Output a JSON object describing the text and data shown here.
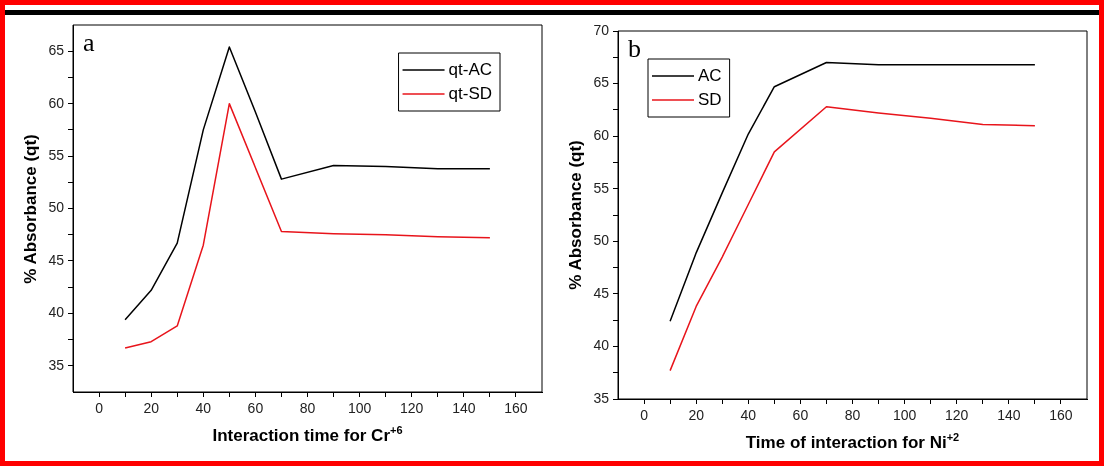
{
  "chart_data": [
    {
      "type": "line",
      "xlabel": "Interaction time for Cr$^{+6}$",
      "ylabel": "% Absorbance (qt)",
      "annotations": [
        "a"
      ],
      "series": [
        {
          "name": "qt-AC",
          "color": "#000000",
          "x": [
            10,
            20,
            30,
            40,
            50,
            60,
            70,
            90,
            110,
            130,
            150
          ],
          "values": [
            39.4,
            42.2,
            46.7,
            57.5,
            65.4,
            59.2,
            52.8,
            54.1,
            54.0,
            53.8,
            53.8
          ]
        },
        {
          "name": "qt-SD",
          "color": "#e8141b",
          "x": [
            10,
            20,
            30,
            40,
            50,
            70,
            90,
            110,
            130,
            150
          ],
          "values": [
            36.7,
            37.3,
            38.8,
            46.5,
            60.0,
            47.8,
            47.6,
            47.5,
            47.3,
            47.2
          ]
        }
      ],
      "xlim": [
        -10,
        170
      ],
      "xticks": [
        0,
        {
          "value": 10,
          "label": null
        },
        20,
        {
          "value": 30,
          "label": null
        },
        40,
        {
          "value": 50,
          "label": null
        },
        60,
        {
          "value": 70,
          "label": null
        },
        80,
        {
          "value": 90,
          "label": null
        },
        100,
        {
          "value": 110,
          "label": null
        },
        120,
        {
          "value": 130,
          "label": null
        },
        140,
        {
          "value": 150,
          "label": null
        },
        160
      ],
      "ylim": [
        32.5,
        67.5
      ],
      "yticks": [
        35,
        {
          "value": 37.5,
          "label": null
        },
        40,
        {
          "value": 42.5,
          "label": null
        },
        45,
        {
          "value": 47.5,
          "label": null
        },
        50,
        {
          "value": 52.5,
          "label": null
        },
        55,
        {
          "value": 57.5,
          "label": null
        },
        60,
        {
          "value": 62.5,
          "label": null
        },
        65
      ],
      "grid": false,
      "legend": "top right",
      "marker": "none",
      "line_style": "solid"
    },
    {
      "type": "line",
      "xlabel": "Time of interaction for Ni$^{+2}$",
      "ylabel": "% Absorbance (qt)",
      "annotations": [
        "b"
      ],
      "series": [
        {
          "name": "AC",
          "color": "#000000",
          "x": [
            10,
            20,
            30,
            40,
            50,
            70,
            90,
            110,
            130,
            150
          ],
          "values": [
            42.4,
            48.9,
            54.6,
            60.2,
            64.7,
            67.0,
            66.8,
            66.8,
            66.8,
            66.8
          ]
        },
        {
          "name": "SD",
          "color": "#e8141b",
          "x": [
            10,
            20,
            30,
            40,
            50,
            70,
            90,
            110,
            130,
            150
          ],
          "values": [
            37.7,
            43.8,
            48.5,
            53.5,
            58.5,
            62.8,
            62.2,
            61.7,
            61.1,
            61.0
          ]
        }
      ],
      "xlim": [
        -10,
        170
      ],
      "xticks": [
        0,
        {
          "value": 10,
          "label": null
        },
        20,
        {
          "value": 30,
          "label": null
        },
        40,
        {
          "value": 50,
          "label": null
        },
        60,
        {
          "value": 70,
          "label": null
        },
        80,
        {
          "value": 90,
          "label": null
        },
        100,
        {
          "value": 110,
          "label": null
        },
        120,
        {
          "value": 130,
          "label": null
        },
        140,
        {
          "value": 150,
          "label": null
        },
        160
      ],
      "ylim": [
        35,
        70
      ],
      "yticks": [
        35,
        {
          "value": 37.5,
          "label": null
        },
        40,
        {
          "value": 42.5,
          "label": null
        },
        45,
        {
          "value": 47.5,
          "label": null
        },
        50,
        {
          "value": 52.5,
          "label": null
        },
        55,
        {
          "value": 57.5,
          "label": null
        },
        60,
        {
          "value": 62.5,
          "label": null
        },
        65,
        {
          "value": 67.5,
          "label": null
        },
        70
      ],
      "grid": false,
      "legend": "top left",
      "marker": "none",
      "line_style": "solid"
    }
  ]
}
